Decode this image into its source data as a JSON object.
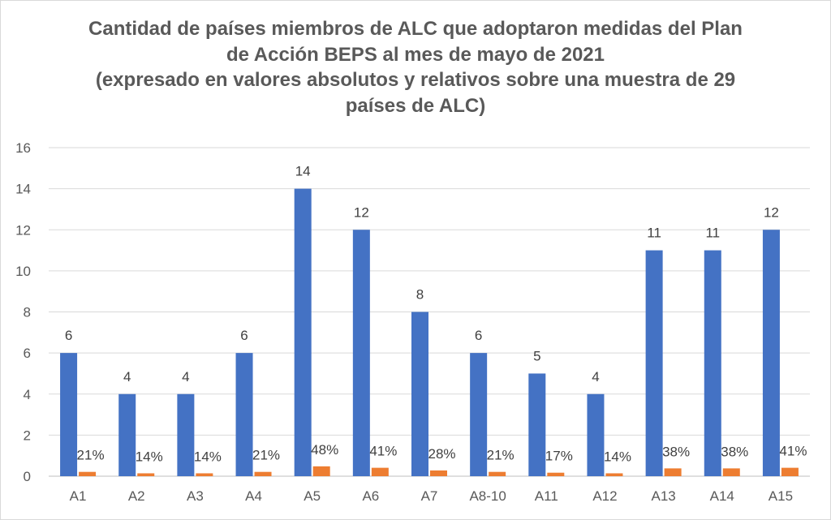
{
  "chart_data": {
    "type": "bar",
    "title_lines": [
      "Cantidad de países miembros de ALC que adoptaron medidas del Plan",
      "de Acción BEPS al mes de mayo de 2021",
      "(expresado en valores absolutos y relativos sobre una muestra de 29",
      "países de ALC)"
    ],
    "categories": [
      "A1",
      "A2",
      "A3",
      "A4",
      "A5",
      "A6",
      "A7",
      "A8-10",
      "A11",
      "A12",
      "A13",
      "A14",
      "A15"
    ],
    "series": [
      {
        "values": [
          6,
          4,
          4,
          6,
          14,
          12,
          8,
          6,
          5,
          4,
          11,
          11,
          12
        ],
        "labels": [
          "6",
          "4",
          "4",
          "6",
          "14",
          "12",
          "8",
          "6",
          "5",
          "4",
          "11",
          "11",
          "12"
        ],
        "color": "#4472c4"
      },
      {
        "values": [
          0.21,
          0.14,
          0.14,
          0.21,
          0.48,
          0.41,
          0.28,
          0.21,
          0.17,
          0.14,
          0.38,
          0.38,
          0.41
        ],
        "labels": [
          "21%",
          "14%",
          "14%",
          "21%",
          "48%",
          "41%",
          "28%",
          "21%",
          "17%",
          "14%",
          "38%",
          "38%",
          "41%"
        ],
        "color": "#ed7d31"
      }
    ],
    "ylim": [
      0,
      16
    ],
    "yticks": [
      "0",
      "2",
      "4",
      "6",
      "8",
      "10",
      "12",
      "14",
      "16"
    ],
    "grid": true,
    "gridColor": "#d9d9d9"
  }
}
